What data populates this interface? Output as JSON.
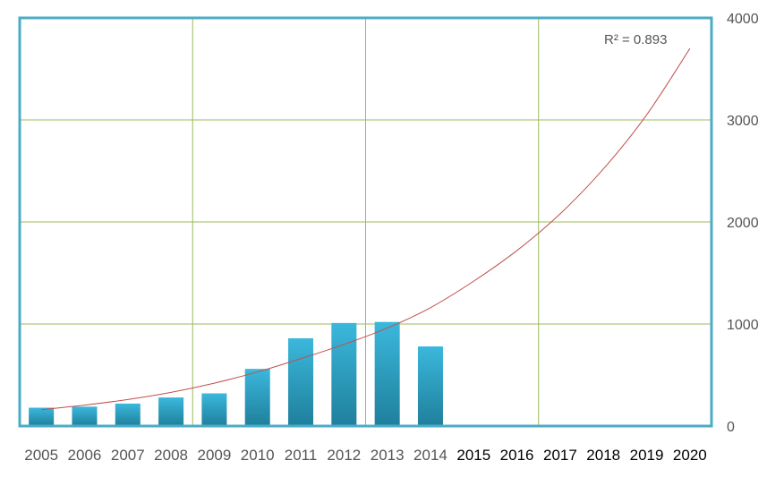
{
  "chart_data": {
    "type": "bar",
    "title": "",
    "xlabel": "",
    "ylabel": "",
    "categories": [
      "2005",
      "2006",
      "2007",
      "2008",
      "2009",
      "2010",
      "2011",
      "2012",
      "2013",
      "2014",
      "2015",
      "2016",
      "2017",
      "2018",
      "2019",
      "2020"
    ],
    "values": [
      180,
      190,
      220,
      280,
      320,
      560,
      860,
      1010,
      1020,
      780,
      null,
      null,
      null,
      null,
      null,
      null
    ],
    "ylim": [
      0,
      4000
    ],
    "yticks": [
      "0",
      "1000",
      "2000",
      "3000",
      "4000"
    ],
    "grid": true,
    "y_axis_side": "right",
    "trendline": {
      "type": "exponential",
      "label": "R² = 0.893",
      "x": [
        "2005",
        "2006",
        "2007",
        "2008",
        "2009",
        "2010",
        "2011",
        "2012",
        "2013",
        "2014",
        "2015",
        "2016",
        "2017",
        "2018",
        "2019",
        "2020"
      ],
      "values": [
        160,
        205,
        260,
        330,
        420,
        530,
        660,
        800,
        960,
        1160,
        1420,
        1720,
        2080,
        2520,
        3050,
        3700
      ]
    },
    "colors": {
      "bar": "#2ba3c7",
      "bar_light": "#3bb8dc",
      "bar_dark": "#1f7f9c",
      "trendline": "#c0504d",
      "grid": "#9bbb59",
      "frame": "#4bacc6",
      "future_tick_label": "#000000",
      "past_tick_label": "#555555"
    }
  }
}
